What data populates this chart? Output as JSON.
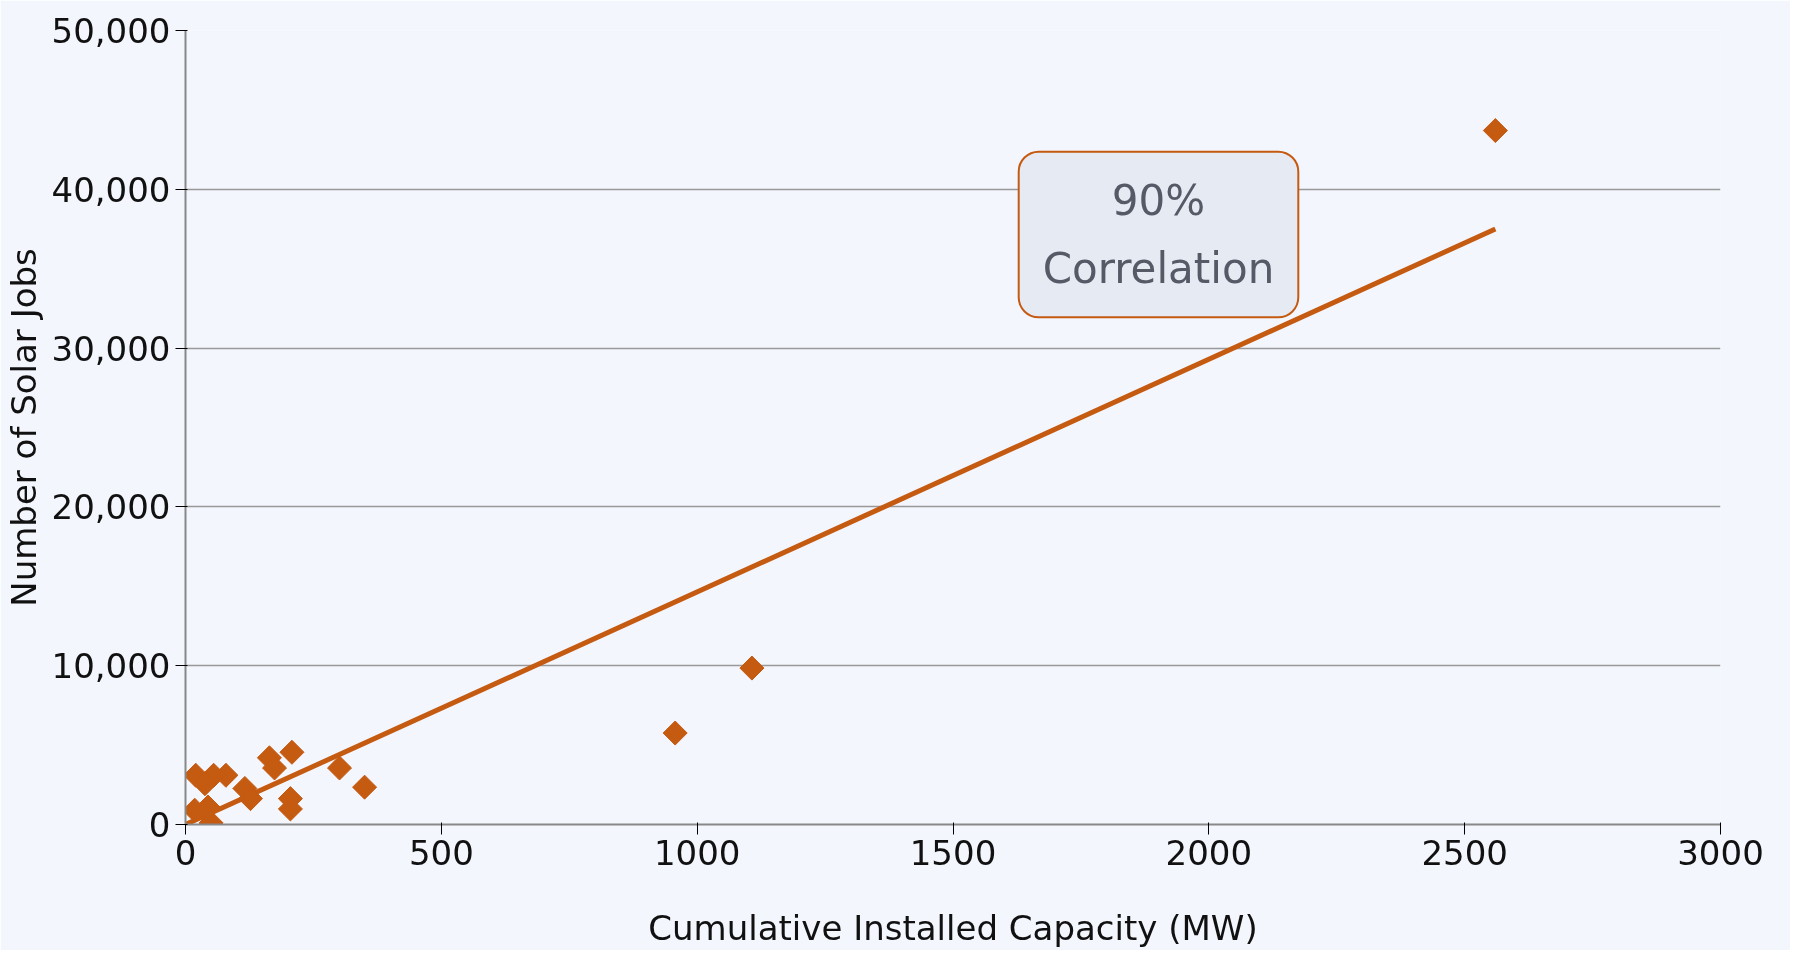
{
  "chart_data": {
    "type": "scatter",
    "xlabel": "Cumulative Installed Capacity (MW)",
    "ylabel": "Number of Solar Jobs",
    "xlim": [
      0,
      3000
    ],
    "xticks": [
      0,
      500,
      1000,
      1500,
      2000,
      2500,
      3000
    ],
    "ylim": [
      0,
      50000
    ],
    "yticks": [
      {
        "value": 0,
        "label": "0"
      },
      {
        "value": 10000,
        "label": "10,000"
      },
      {
        "value": 20000,
        "label": "20,000"
      },
      {
        "value": 30000,
        "label": "30,000"
      },
      {
        "value": 40000,
        "label": "40,000"
      },
      {
        "value": 50000,
        "label": "50,000"
      }
    ],
    "grid": "y",
    "series": [
      {
        "color": "#c55a11",
        "marker": "diamond",
        "x": [
          2560,
          1107,
          957,
          350,
          301,
          208,
          205,
          205,
          164,
          174,
          116,
          127,
          79,
          55,
          20,
          38,
          18,
          44,
          50
        ],
        "values": [
          43700,
          9850,
          5760,
          2350,
          3560,
          4550,
          1630,
          980,
          4200,
          3560,
          2270,
          1630,
          3100,
          3100,
          3100,
          2570,
          900,
          1100,
          100
        ]
      },
      {
        "type": "line",
        "color": "#c55a11",
        "marker": "none",
        "x": [
          0,
          2560
        ],
        "values": [
          0,
          37500
        ]
      }
    ],
    "annotations": [
      "90% Correlation"
    ]
  }
}
